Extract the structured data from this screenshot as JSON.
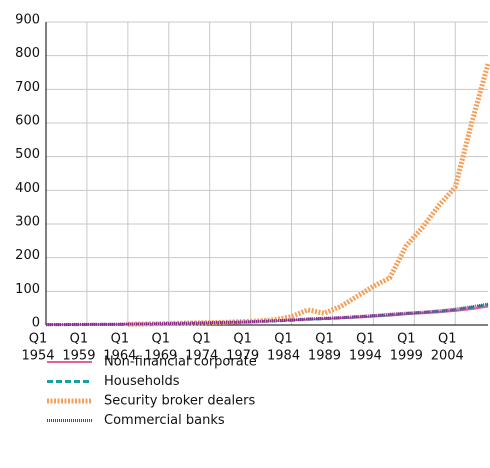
{
  "chart_data": {
    "type": "line",
    "x": [
      1954,
      1956,
      1958,
      1960,
      1962,
      1964,
      1966,
      1968,
      1970,
      1972,
      1974,
      1976,
      1978,
      1980,
      1982,
      1984,
      1986,
      1988,
      1990,
      1992,
      1994,
      1996,
      1998,
      2000,
      2002,
      2004,
      2006,
      2008
    ],
    "series": [
      {
        "name": "Non-financial corporate",
        "color": "#e8608a",
        "values": [
          1,
          1,
          1,
          2,
          2,
          2,
          3,
          3,
          4,
          5,
          6,
          7,
          8,
          10,
          12,
          14,
          16,
          18,
          20,
          22,
          25,
          28,
          32,
          35,
          38,
          42,
          47,
          55
        ]
      },
      {
        "name": "Households",
        "color": "#1a9e9e",
        "values": [
          1,
          1,
          1,
          2,
          2,
          2,
          3,
          3,
          4,
          5,
          6,
          7,
          8,
          10,
          12,
          14,
          17,
          19,
          21,
          24,
          27,
          30,
          34,
          37,
          40,
          45,
          52,
          60
        ]
      },
      {
        "name": "Security broker dealers",
        "color": "#f5a05a",
        "values": [
          null,
          null,
          null,
          null,
          null,
          2,
          3,
          4,
          5,
          6,
          7,
          8,
          10,
          12,
          16,
          25,
          45,
          35,
          55,
          85,
          115,
          140,
          235,
          290,
          355,
          410,
          600,
          775
        ]
      },
      {
        "name": "Commercial banks",
        "color": "#8b2a8b",
        "values": [
          1,
          1,
          2,
          2,
          2,
          3,
          3,
          4,
          5,
          6,
          7,
          8,
          9,
          11,
          13,
          15,
          18,
          20,
          22,
          25,
          28,
          32,
          35,
          38,
          42,
          47,
          54,
          62
        ]
      }
    ],
    "xlim": [
      1954,
      2008
    ],
    "xticks": [
      {
        "value": 1954,
        "label": [
          "Q1",
          "1954"
        ]
      },
      {
        "value": 1959,
        "label": [
          "Q1",
          "1959"
        ]
      },
      {
        "value": 1964,
        "label": [
          "Q1",
          "1964"
        ]
      },
      {
        "value": 1969,
        "label": [
          "Q1",
          "1969"
        ]
      },
      {
        "value": 1974,
        "label": [
          "Q1",
          "1974"
        ]
      },
      {
        "value": 1979,
        "label": [
          "Q1",
          "1979"
        ]
      },
      {
        "value": 1984,
        "label": [
          "Q1",
          "1984"
        ]
      },
      {
        "value": 1989,
        "label": [
          "Q1",
          "1989"
        ]
      },
      {
        "value": 1994,
        "label": [
          "Q1",
          "1994"
        ]
      },
      {
        "value": 1999,
        "label": [
          "Q1",
          "1999"
        ]
      },
      {
        "value": 2004,
        "label": [
          "Q1",
          "2004"
        ]
      }
    ],
    "ylim": [
      0,
      900
    ],
    "yticks": [
      0,
      100,
      200,
      300,
      400,
      500,
      600,
      700,
      800,
      900
    ],
    "grid": true
  }
}
